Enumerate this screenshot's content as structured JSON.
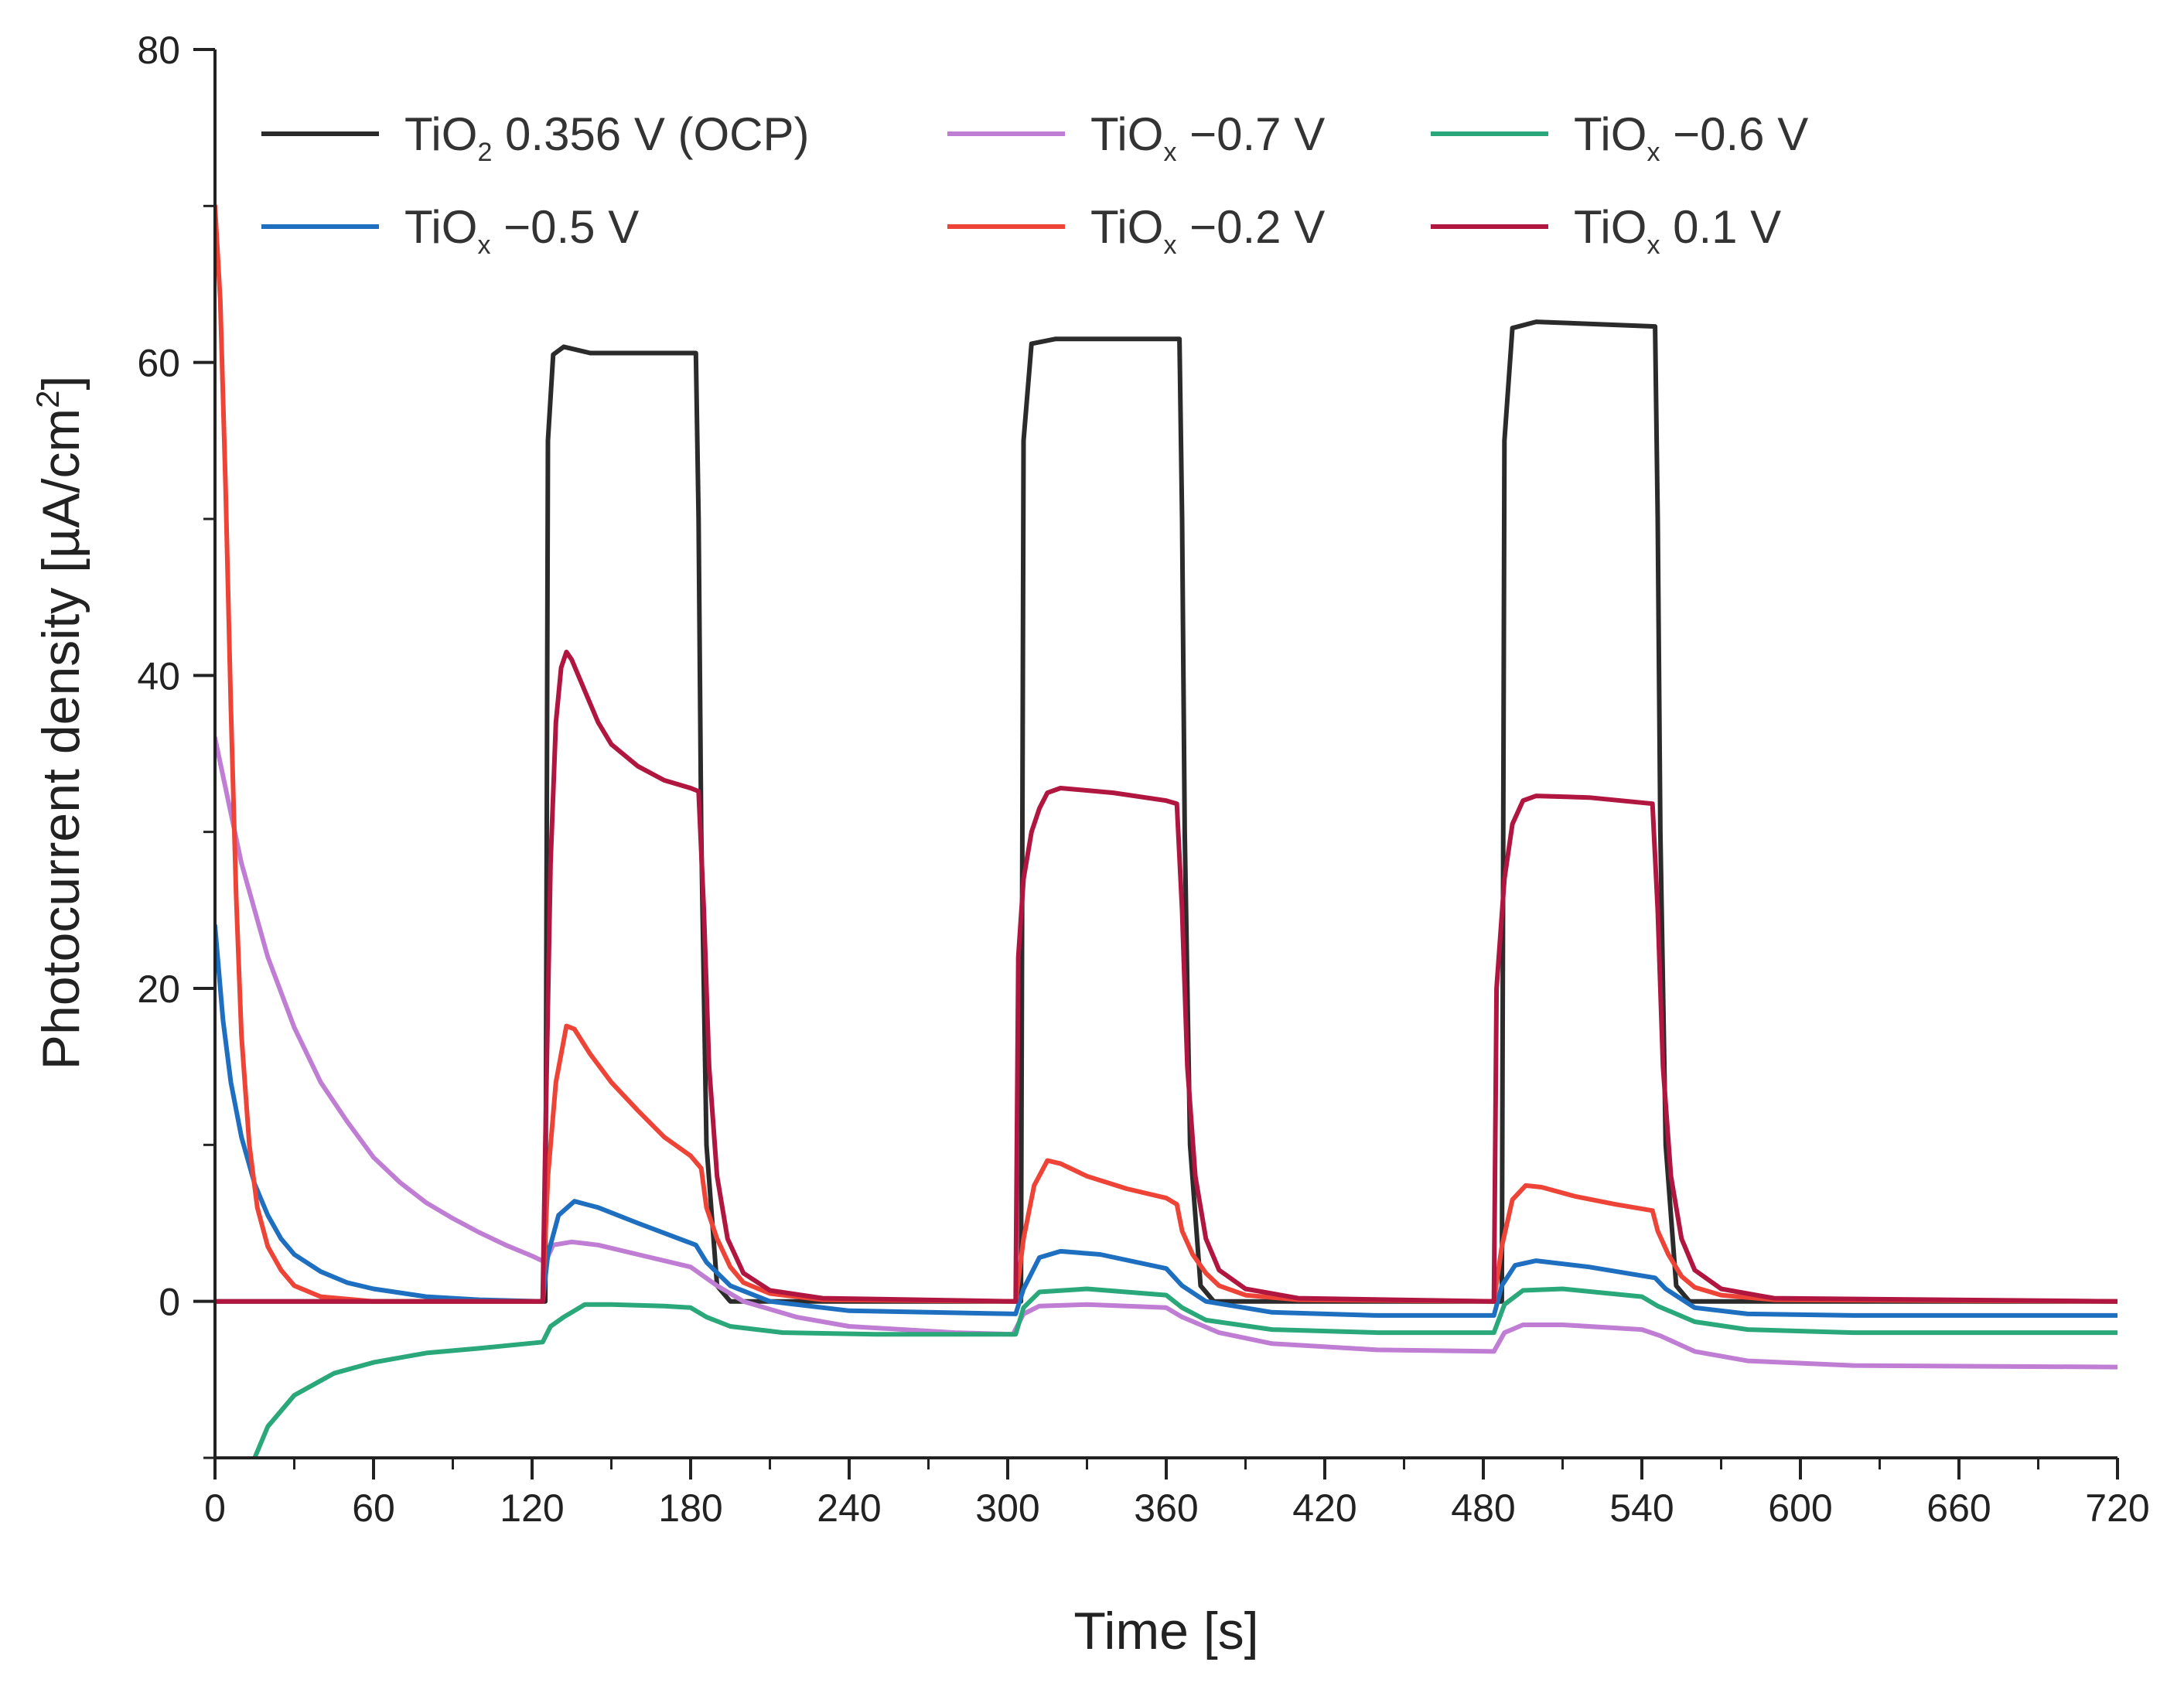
{
  "chart_data": {
    "type": "line",
    "title": "",
    "xlabel": "Time [s]",
    "ylabel_base": "Photocurrent density [µA/cm",
    "ylabel_sup": "2",
    "ylabel_end": "]",
    "xlim": [
      0,
      720
    ],
    "ylim": [
      -10,
      80
    ],
    "xticks": [
      0,
      60,
      120,
      180,
      240,
      300,
      360,
      420,
      480,
      540,
      600,
      660,
      720
    ],
    "yticks": [
      0,
      20,
      40,
      60,
      80
    ],
    "grid": false,
    "legend_position": "top",
    "series": [
      {
        "name": "TiO2 0.356 V (OCP)",
        "label_parts": [
          "TiO",
          "2",
          " 0.356 V (OCP)"
        ],
        "color": "#2b2b2b",
        "points": [
          [
            0,
            0
          ],
          [
            125,
            0
          ],
          [
            126,
            55
          ],
          [
            128,
            60.5
          ],
          [
            132,
            61
          ],
          [
            142,
            60.6
          ],
          [
            182,
            60.6
          ],
          [
            183,
            50
          ],
          [
            184,
            30
          ],
          [
            186,
            10
          ],
          [
            190,
            1
          ],
          [
            195,
            0
          ],
          [
            305,
            0
          ],
          [
            306,
            55
          ],
          [
            309,
            61.2
          ],
          [
            318,
            61.5
          ],
          [
            365,
            61.5
          ],
          [
            366,
            50
          ],
          [
            367,
            30
          ],
          [
            369,
            10
          ],
          [
            373,
            1
          ],
          [
            378,
            0
          ],
          [
            487,
            0
          ],
          [
            488,
            55
          ],
          [
            491,
            62.2
          ],
          [
            500,
            62.6
          ],
          [
            545,
            62.3
          ],
          [
            546,
            50
          ],
          [
            547,
            30
          ],
          [
            549,
            10
          ],
          [
            553,
            1
          ],
          [
            558,
            0
          ],
          [
            720,
            0
          ]
        ]
      },
      {
        "name": "TiOx -0.7 V",
        "label_parts": [
          "TiO",
          "x",
          " −0.7 V"
        ],
        "color": "#c07dd4",
        "points": [
          [
            0,
            36
          ],
          [
            10,
            28
          ],
          [
            20,
            22
          ],
          [
            30,
            17.5
          ],
          [
            40,
            14
          ],
          [
            50,
            11.5
          ],
          [
            60,
            9.2
          ],
          [
            70,
            7.6
          ],
          [
            80,
            6.3
          ],
          [
            90,
            5.3
          ],
          [
            100,
            4.4
          ],
          [
            110,
            3.6
          ],
          [
            120,
            2.9
          ],
          [
            125,
            2.5
          ],
          [
            128,
            3.6
          ],
          [
            135,
            3.8
          ],
          [
            145,
            3.6
          ],
          [
            160,
            3
          ],
          [
            180,
            2.2
          ],
          [
            190,
            1
          ],
          [
            200,
            0
          ],
          [
            220,
            -1
          ],
          [
            240,
            -1.6
          ],
          [
            280,
            -2
          ],
          [
            302,
            -2.1
          ],
          [
            306,
            -0.8
          ],
          [
            312,
            -0.3
          ],
          [
            330,
            -0.2
          ],
          [
            360,
            -0.4
          ],
          [
            366,
            -1
          ],
          [
            380,
            -2
          ],
          [
            400,
            -2.7
          ],
          [
            440,
            -3.1
          ],
          [
            484,
            -3.2
          ],
          [
            488,
            -2
          ],
          [
            495,
            -1.5
          ],
          [
            510,
            -1.5
          ],
          [
            540,
            -1.8
          ],
          [
            547,
            -2.2
          ],
          [
            560,
            -3.2
          ],
          [
            580,
            -3.8
          ],
          [
            620,
            -4.1
          ],
          [
            720,
            -4.2
          ]
        ]
      },
      {
        "name": "TiOx -0.6 V",
        "label_parts": [
          "TiO",
          "x",
          " −0.6 V"
        ],
        "color": "#2aa87a",
        "points": [
          [
            15,
            -10
          ],
          [
            20,
            -8
          ],
          [
            30,
            -6
          ],
          [
            45,
            -4.6
          ],
          [
            60,
            -3.9
          ],
          [
            80,
            -3.3
          ],
          [
            100,
            -3
          ],
          [
            124,
            -2.6
          ],
          [
            127,
            -1.6
          ],
          [
            132,
            -1
          ],
          [
            140,
            -0.2
          ],
          [
            150,
            -0.2
          ],
          [
            170,
            -0.3
          ],
          [
            180,
            -0.4
          ],
          [
            186,
            -1
          ],
          [
            195,
            -1.6
          ],
          [
            215,
            -2
          ],
          [
            250,
            -2.1
          ],
          [
            303,
            -2.1
          ],
          [
            306,
            -0.4
          ],
          [
            312,
            0.6
          ],
          [
            330,
            0.8
          ],
          [
            360,
            0.4
          ],
          [
            366,
            -0.4
          ],
          [
            375,
            -1.2
          ],
          [
            400,
            -1.8
          ],
          [
            440,
            -2
          ],
          [
            484,
            -2
          ],
          [
            488,
            -0.2
          ],
          [
            495,
            0.7
          ],
          [
            510,
            0.8
          ],
          [
            540,
            0.3
          ],
          [
            546,
            -0.3
          ],
          [
            560,
            -1.3
          ],
          [
            580,
            -1.8
          ],
          [
            620,
            -2
          ],
          [
            720,
            -2
          ]
        ]
      },
      {
        "name": "TiOx -0.5 V",
        "label_parts": [
          "TiO",
          "x",
          " −0.5 V"
        ],
        "color": "#1f6fc0",
        "points": [
          [
            0,
            24
          ],
          [
            3,
            18
          ],
          [
            6,
            14
          ],
          [
            10,
            10.5
          ],
          [
            15,
            7.5
          ],
          [
            20,
            5.5
          ],
          [
            25,
            4
          ],
          [
            30,
            3
          ],
          [
            40,
            1.9
          ],
          [
            50,
            1.2
          ],
          [
            60,
            0.8
          ],
          [
            80,
            0.3
          ],
          [
            100,
            0.1
          ],
          [
            124,
            0
          ],
          [
            126,
            3
          ],
          [
            130,
            5.5
          ],
          [
            136,
            6.4
          ],
          [
            145,
            6
          ],
          [
            160,
            5
          ],
          [
            182,
            3.6
          ],
          [
            186,
            2.5
          ],
          [
            195,
            1
          ],
          [
            210,
            0
          ],
          [
            240,
            -0.6
          ],
          [
            303,
            -0.8
          ],
          [
            306,
            0.8
          ],
          [
            312,
            2.8
          ],
          [
            320,
            3.2
          ],
          [
            335,
            3
          ],
          [
            360,
            2.1
          ],
          [
            366,
            1
          ],
          [
            375,
            0
          ],
          [
            400,
            -0.7
          ],
          [
            440,
            -0.9
          ],
          [
            484,
            -0.9
          ],
          [
            487,
            1
          ],
          [
            492,
            2.3
          ],
          [
            500,
            2.6
          ],
          [
            520,
            2.2
          ],
          [
            545,
            1.5
          ],
          [
            549,
            0.8
          ],
          [
            560,
            -0.4
          ],
          [
            580,
            -0.8
          ],
          [
            620,
            -0.9
          ],
          [
            720,
            -0.9
          ]
        ]
      },
      {
        "name": "TiOx -0.2 V",
        "label_parts": [
          "TiO",
          "x",
          " −0.2 V"
        ],
        "color": "#ee4438",
        "points": [
          [
            0,
            70
          ],
          [
            2,
            64
          ],
          [
            4,
            52
          ],
          [
            6,
            38
          ],
          [
            8,
            26
          ],
          [
            10,
            17
          ],
          [
            13,
            10
          ],
          [
            16,
            6
          ],
          [
            20,
            3.5
          ],
          [
            25,
            2
          ],
          [
            30,
            1
          ],
          [
            40,
            0.3
          ],
          [
            60,
            0
          ],
          [
            124,
            0
          ],
          [
            126,
            8
          ],
          [
            129,
            14
          ],
          [
            133,
            17.6
          ],
          [
            136,
            17.4
          ],
          [
            142,
            15.8
          ],
          [
            150,
            14
          ],
          [
            160,
            12.2
          ],
          [
            170,
            10.5
          ],
          [
            180,
            9.3
          ],
          [
            184,
            8.5
          ],
          [
            186,
            6
          ],
          [
            190,
            4
          ],
          [
            195,
            2.2
          ],
          [
            200,
            1.2
          ],
          [
            210,
            0.5
          ],
          [
            230,
            0.1
          ],
          [
            303,
            0
          ],
          [
            306,
            4
          ],
          [
            310,
            7.4
          ],
          [
            315,
            9
          ],
          [
            320,
            8.8
          ],
          [
            330,
            8
          ],
          [
            345,
            7.2
          ],
          [
            360,
            6.6
          ],
          [
            364,
            6.2
          ],
          [
            366,
            4.5
          ],
          [
            370,
            3
          ],
          [
            375,
            1.8
          ],
          [
            380,
            1
          ],
          [
            390,
            0.4
          ],
          [
            410,
            0.1
          ],
          [
            484,
            0
          ],
          [
            487,
            3.5
          ],
          [
            491,
            6.5
          ],
          [
            496,
            7.4
          ],
          [
            502,
            7.3
          ],
          [
            515,
            6.7
          ],
          [
            530,
            6.2
          ],
          [
            544,
            5.8
          ],
          [
            546,
            4.5
          ],
          [
            550,
            3
          ],
          [
            555,
            1.6
          ],
          [
            560,
            0.9
          ],
          [
            570,
            0.4
          ],
          [
            590,
            0.1
          ],
          [
            720,
            0
          ]
        ]
      },
      {
        "name": "TiOx 0.1 V",
        "label_parts": [
          "TiO",
          "x",
          " 0.1 V"
        ],
        "color": "#b0163f",
        "points": [
          [
            0,
            0
          ],
          [
            124,
            0
          ],
          [
            125,
            10
          ],
          [
            127,
            28
          ],
          [
            129,
            37
          ],
          [
            131,
            40.5
          ],
          [
            133,
            41.5
          ],
          [
            135,
            41
          ],
          [
            140,
            39
          ],
          [
            145,
            37
          ],
          [
            150,
            35.6
          ],
          [
            160,
            34.2
          ],
          [
            170,
            33.3
          ],
          [
            180,
            32.8
          ],
          [
            183,
            32.6
          ],
          [
            185,
            25
          ],
          [
            187,
            15
          ],
          [
            190,
            8
          ],
          [
            194,
            4
          ],
          [
            200,
            1.8
          ],
          [
            210,
            0.7
          ],
          [
            230,
            0.2
          ],
          [
            303,
            0
          ],
          [
            304,
            22
          ],
          [
            306,
            27
          ],
          [
            309,
            30
          ],
          [
            312,
            31.5
          ],
          [
            315,
            32.5
          ],
          [
            320,
            32.8
          ],
          [
            340,
            32.5
          ],
          [
            360,
            32
          ],
          [
            364,
            31.8
          ],
          [
            366,
            25
          ],
          [
            368,
            15
          ],
          [
            371,
            8
          ],
          [
            375,
            4
          ],
          [
            380,
            2
          ],
          [
            390,
            0.8
          ],
          [
            410,
            0.2
          ],
          [
            484,
            0
          ],
          [
            485,
            20
          ],
          [
            488,
            27
          ],
          [
            491,
            30.5
          ],
          [
            495,
            32
          ],
          [
            500,
            32.3
          ],
          [
            520,
            32.2
          ],
          [
            544,
            31.8
          ],
          [
            546,
            25
          ],
          [
            548,
            15
          ],
          [
            551,
            8
          ],
          [
            555,
            4
          ],
          [
            560,
            2
          ],
          [
            570,
            0.8
          ],
          [
            590,
            0.2
          ],
          [
            720,
            0
          ]
        ]
      }
    ]
  }
}
